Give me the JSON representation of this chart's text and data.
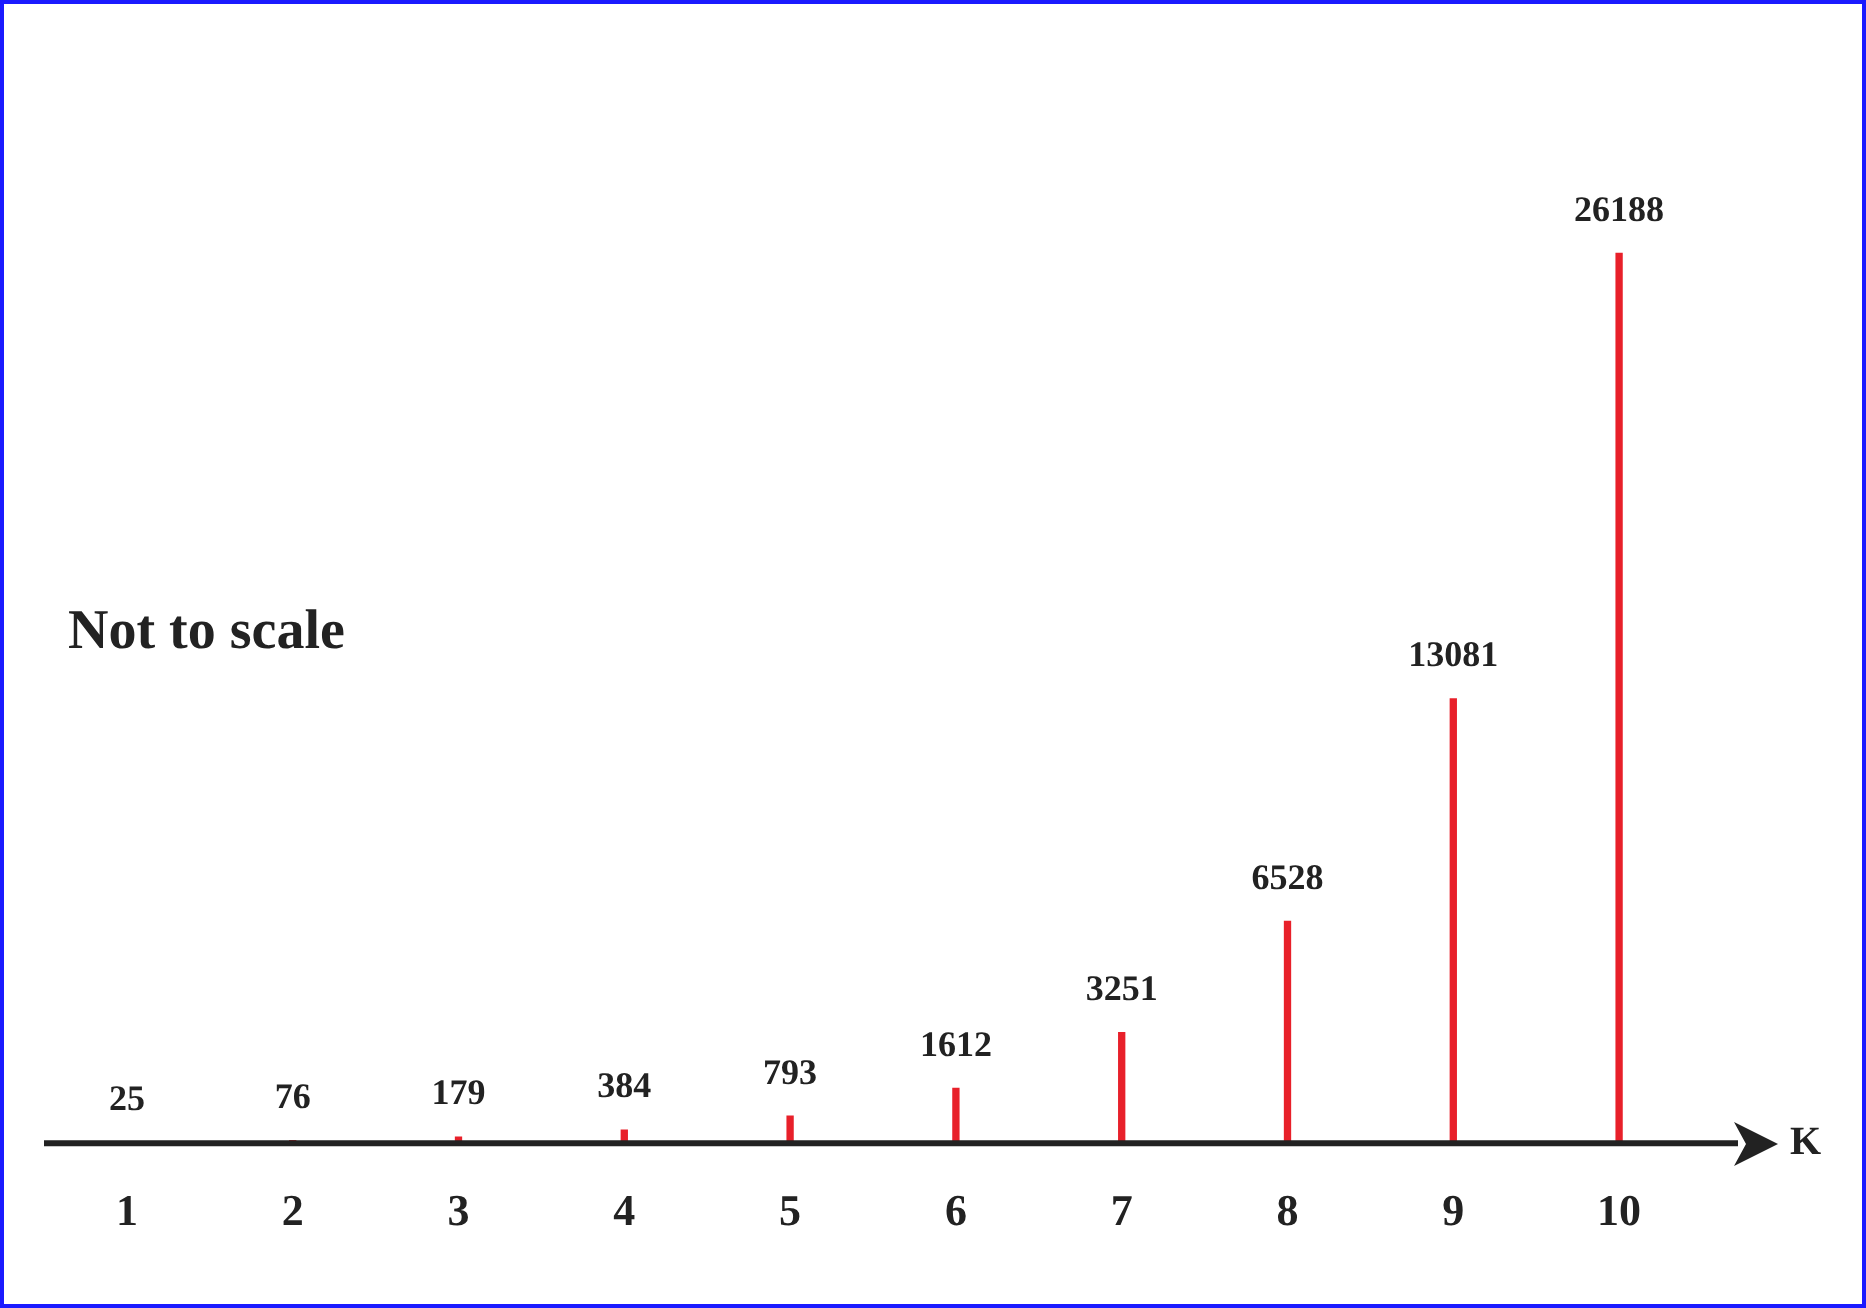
{
  "chart_data": {
    "type": "bar",
    "categories": [
      "1",
      "2",
      "3",
      "4",
      "5",
      "6",
      "7",
      "8",
      "9",
      "10"
    ],
    "values": [
      25,
      76,
      179,
      384,
      793,
      1612,
      3251,
      6528,
      13081,
      26188
    ],
    "color": "#e8202a",
    "data_labels": true,
    "xlabel": "K",
    "annotations": [
      "Not to scale"
    ],
    "grid": false,
    "legend": false
  }
}
